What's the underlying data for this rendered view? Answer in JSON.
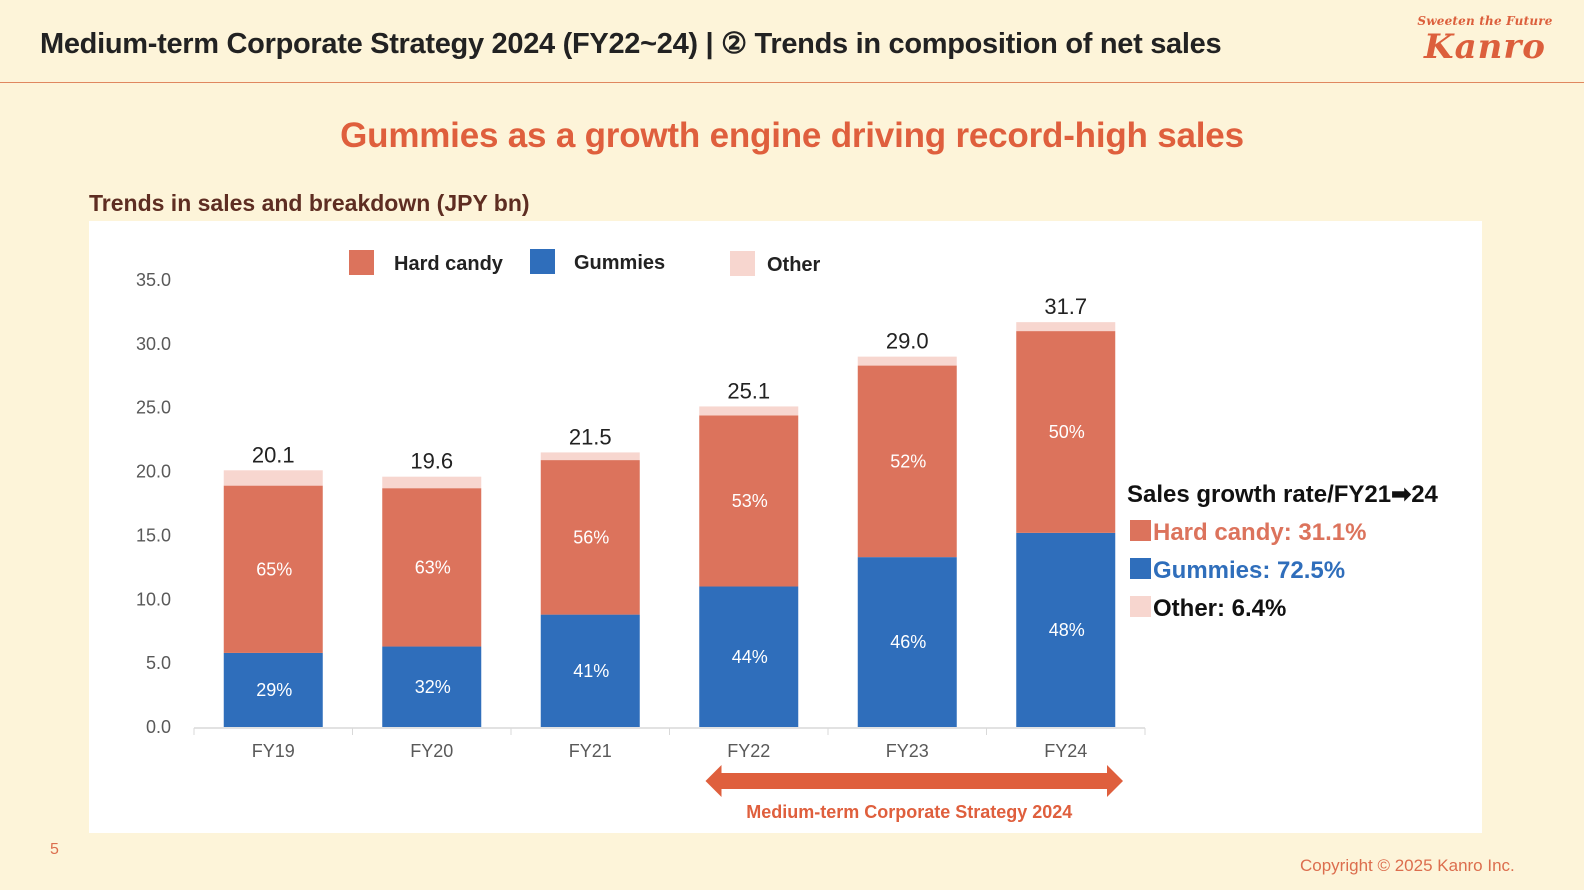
{
  "header": {
    "title": "Medium-term Corporate Strategy 2024 (FY22~24) | ② Trends in composition of net sales"
  },
  "logo": {
    "tagline": "Sweeten the Future",
    "name": "Kanro"
  },
  "headline": "Gummies as a growth engine driving record-high sales",
  "colors": {
    "hard_candy": "#dc735c",
    "gummies": "#2f6ebb",
    "other": "#f7d6cf",
    "accent": "#df5f3d",
    "axis_text": "#595959"
  },
  "chart_data": {
    "type": "bar",
    "stacked": true,
    "title": "Trends in sales and breakdown (JPY bn)",
    "xlabel": "",
    "ylabel": "",
    "ylim": [
      0,
      35
    ],
    "yticks": [
      "0.0",
      "5.0",
      "10.0",
      "15.0",
      "20.0",
      "25.0",
      "30.0",
      "35.0"
    ],
    "grid": false,
    "legend_position": "top",
    "categories": [
      "FY19",
      "FY20",
      "FY21",
      "FY22",
      "FY23",
      "FY24"
    ],
    "totals": [
      20.1,
      19.6,
      21.5,
      25.1,
      29.0,
      31.7
    ],
    "total_labels": [
      "20.1",
      "19.6",
      "21.5",
      "25.1",
      "29.0",
      "31.7"
    ],
    "series": [
      {
        "name": "Gummies",
        "values": [
          5.8,
          6.3,
          8.8,
          11.0,
          13.3,
          15.2
        ],
        "share_labels": [
          "29%",
          "32%",
          "41%",
          "44%",
          "46%",
          "48%"
        ]
      },
      {
        "name": "Hard candy",
        "values": [
          13.1,
          12.4,
          12.1,
          13.4,
          15.0,
          15.8
        ],
        "share_labels": [
          "65%",
          "63%",
          "56%",
          "53%",
          "52%",
          "50%"
        ]
      },
      {
        "name": "Other",
        "values": [
          1.2,
          0.9,
          0.6,
          0.7,
          0.7,
          0.7
        ],
        "share_labels": [
          "",
          "",
          "",
          "",
          "",
          ""
        ]
      }
    ],
    "legend": [
      "Hard candy",
      "Gummies",
      "Other"
    ],
    "annotation": {
      "span_label": "Medium-term Corporate Strategy 2024",
      "span_from": "FY22",
      "span_to": "FY24"
    },
    "growth_box": {
      "title": "Sales growth rate/FY21➡24",
      "items": [
        {
          "label": "Hard candy: 31.1%",
          "series": "hard_candy"
        },
        {
          "label": "Gummies: 72.5%",
          "series": "gummies"
        },
        {
          "label": "Other: 6.4%",
          "series": "other"
        }
      ]
    }
  },
  "footer": {
    "page_number": "5",
    "copyright": "Copyright © 2025  Kanro Inc."
  }
}
